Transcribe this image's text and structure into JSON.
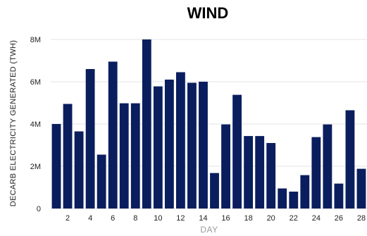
{
  "chart_data": {
    "type": "bar",
    "title": "WIND",
    "xlabel": "DAY",
    "ylabel": "DECARB ELECTRICITY GENERATED (TWH)",
    "ylim": [
      0,
      8000000
    ],
    "yticks": [
      {
        "value": 0,
        "label": "0"
      },
      {
        "value": 2000000,
        "label": "2M"
      },
      {
        "value": 4000000,
        "label": "4M"
      },
      {
        "value": 6000000,
        "label": "6M"
      },
      {
        "value": 8000000,
        "label": "8M"
      }
    ],
    "xtick_labels": [
      "2",
      "4",
      "6",
      "8",
      "10",
      "12",
      "14",
      "16",
      "18",
      "20",
      "22",
      "24",
      "26",
      "28"
    ],
    "categories": [
      1,
      2,
      3,
      4,
      5,
      6,
      7,
      8,
      9,
      10,
      11,
      12,
      13,
      14,
      15,
      16,
      17,
      18,
      19,
      20,
      21,
      22,
      23,
      24,
      25,
      26,
      27,
      28
    ],
    "values": [
      4000000,
      4950000,
      3650000,
      6600000,
      2550000,
      6950000,
      4980000,
      4980000,
      8000000,
      5780000,
      6100000,
      6450000,
      5950000,
      6000000,
      1680000,
      3980000,
      5380000,
      3430000,
      3430000,
      3100000,
      950000,
      800000,
      1580000,
      3380000,
      3980000,
      1180000,
      4650000,
      1880000
    ],
    "bar_color": "#0a1e5e",
    "grid": true
  }
}
